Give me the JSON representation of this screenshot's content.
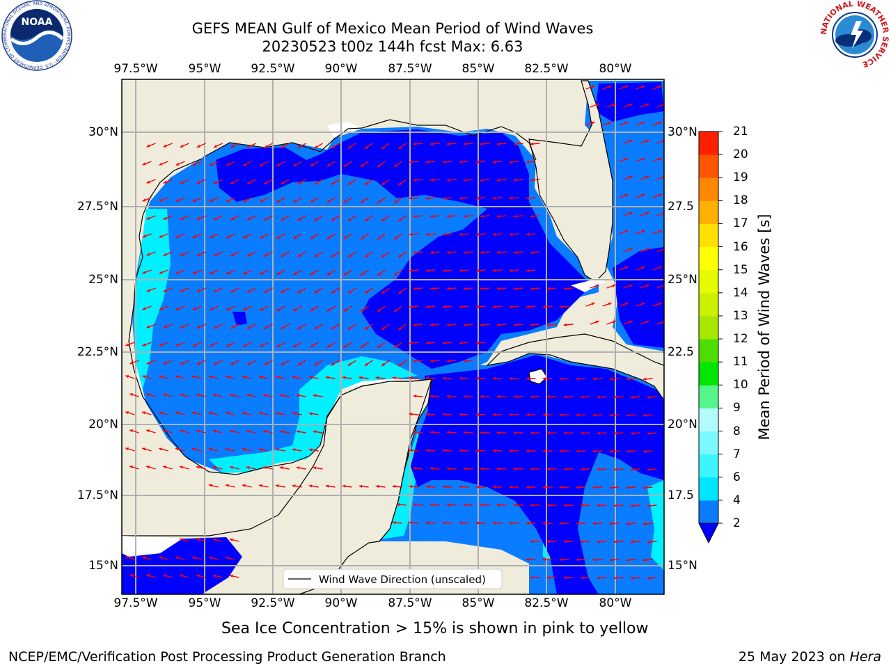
{
  "title": {
    "line1": "GEFS MEAN Gulf of Mexico Mean Period of Wind Waves",
    "line2": "20230523 t00z 144h fcst   Max: 6.63"
  },
  "map": {
    "lon_ticks": [
      "97.5°W",
      "95°W",
      "92.5°W",
      "90°W",
      "87.5°W",
      "85°W",
      "82.5°W",
      "80°W"
    ],
    "lat_ticks_left": [
      "30°N",
      "27.5°N",
      "25°N",
      "22.5°N",
      "20°N",
      "17.5°N",
      "15°N"
    ],
    "lat_ticks_right": [
      "30°N",
      "27.5",
      "25°N",
      "22.5",
      "20°N",
      "17.5",
      "15°N"
    ],
    "legend_label": "Wind Wave Direction (unscaled)",
    "land_color": "#efecdc",
    "arrow_color": "#ff0000"
  },
  "colorbar": {
    "label": "Mean Period of Wind Waves [s]",
    "ticks": [
      "2",
      "4",
      "6",
      "7",
      "8",
      "9",
      "10",
      "11",
      "12",
      "13",
      "14",
      "15",
      "16",
      "17",
      "18",
      "19",
      "20",
      "21"
    ],
    "colors": [
      "#0a7cff",
      "#00e5ff",
      "#3df5ff",
      "#7af9ff",
      "#b3fbff",
      "#55f58a",
      "#00e600",
      "#4ddd00",
      "#a6e600",
      "#cdf000",
      "#e6fa00",
      "#ffff00",
      "#ffe000",
      "#ffb000",
      "#ff8800",
      "#ff5500",
      "#ff2000"
    ],
    "extend_color": "#0000ff"
  },
  "field_colors": {
    "level1": "#0000ff",
    "level2": "#0a7cff",
    "level3": "#00f0ff"
  },
  "caption": "Sea Ice Concentration > 15% is shown in pink to yellow",
  "footer": {
    "left": "NCEP/EMC/Verification Post Processing Product Generation Branch",
    "right_date": "25 May 2023 on ",
    "right_host": "Hera"
  },
  "logos": {
    "noaa": "NOAA",
    "noaa_ring": "NATIONAL OCEANIC AND ATMOSPHERIC ADMINISTRATION · U.S. DEPARTMENT OF COMMERCE",
    "nws_ring": "NATIONAL WEATHER SERVICE"
  }
}
